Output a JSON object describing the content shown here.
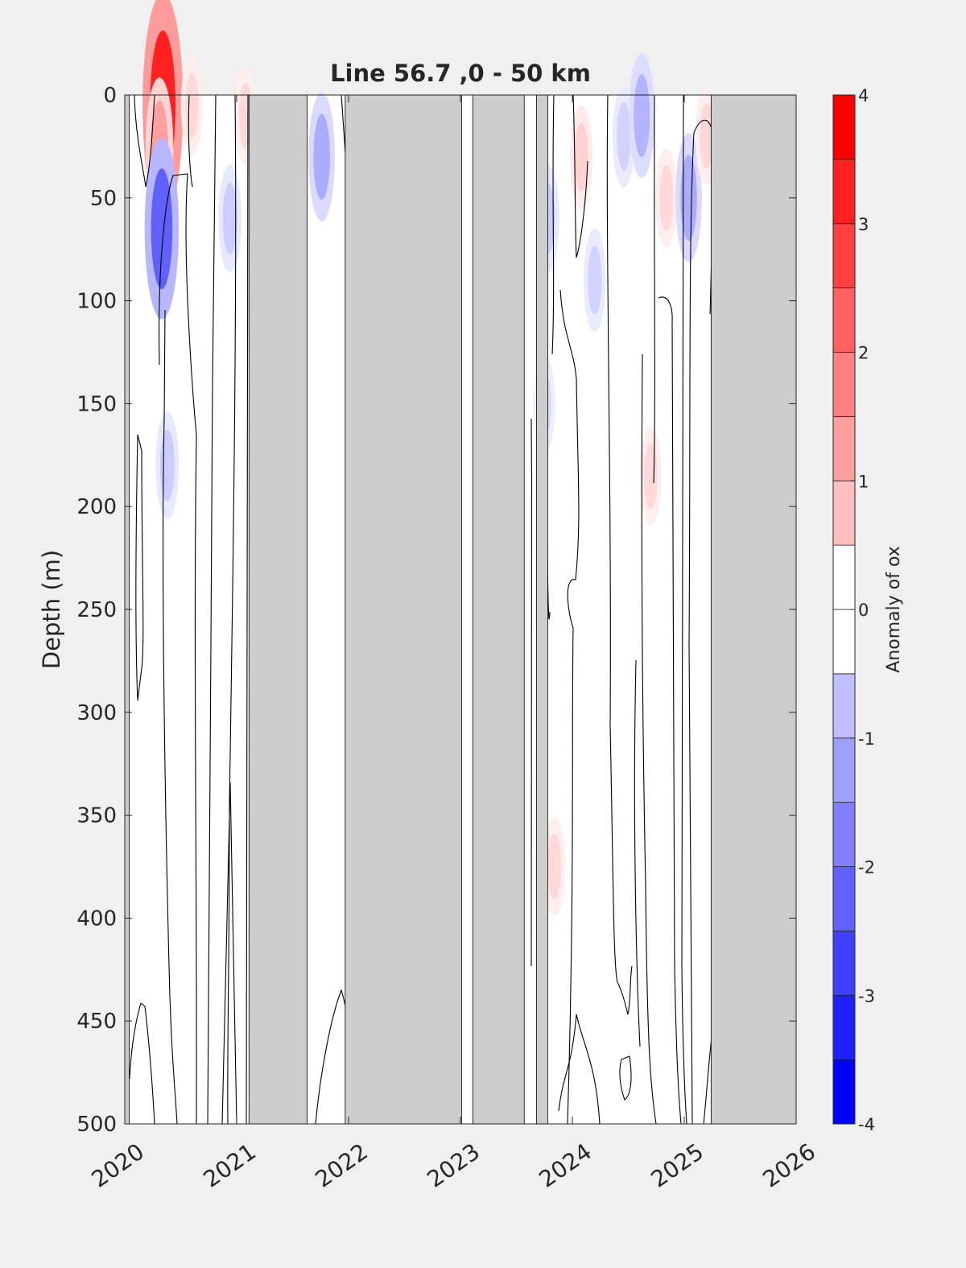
{
  "chart_data": {
    "type": "heatmap",
    "title": "Line 56.7 ,0 - 50 km",
    "ylabel": "Depth (m)",
    "xlabel": "",
    "xlim": [
      2020,
      2026
    ],
    "ylim": [
      500,
      0
    ],
    "y_reversed": true,
    "xticks": [
      "2020",
      "2021",
      "2022",
      "2023",
      "2024",
      "2025",
      "2026"
    ],
    "yticks": [
      "0",
      "50",
      "100",
      "150",
      "200",
      "250",
      "300",
      "350",
      "400",
      "450",
      "500"
    ],
    "colorbar": {
      "label": "Anomaly of ox",
      "range": [
        -4,
        4
      ],
      "step": 0.5,
      "ticks": [
        "-4",
        "-3",
        "-2",
        "-1",
        "0",
        "1",
        "2",
        "3",
        "4"
      ]
    },
    "colors": {
      "no_data": "#cccccc",
      "positive": "#ff0000",
      "negative": "#0000ff",
      "neutral": "#ffffff"
    },
    "no_data_periods": [
      [
        2020.0,
        2020.04
      ],
      [
        2021.11,
        2021.63
      ],
      [
        2021.97,
        2023.01
      ],
      [
        2023.11,
        2023.57
      ],
      [
        2023.68,
        2023.78
      ],
      [
        2025.24,
        2026.0
      ]
    ],
    "anomalies": [
      {
        "x": 2020.34,
        "depth": 5,
        "value": 3.5
      },
      {
        "x": 2020.31,
        "depth": 25,
        "value": 1.5
      },
      {
        "x": 2020.33,
        "depth": 65,
        "value": -2.5
      },
      {
        "x": 2020.38,
        "depth": 180,
        "value": -0.8
      },
      {
        "x": 2020.6,
        "depth": 5,
        "value": 0.6
      },
      {
        "x": 2020.94,
        "depth": 60,
        "value": -0.8
      },
      {
        "x": 2021.08,
        "depth": 10,
        "value": 0.6
      },
      {
        "x": 2021.76,
        "depth": 30,
        "value": -1.3
      },
      {
        "x": 2023.78,
        "depth": 60,
        "value": -0.8
      },
      {
        "x": 2023.75,
        "depth": 150,
        "value": -0.6
      },
      {
        "x": 2023.84,
        "depth": 375,
        "value": 0.6
      },
      {
        "x": 2024.08,
        "depth": 30,
        "value": 0.7
      },
      {
        "x": 2024.2,
        "depth": 90,
        "value": -0.7
      },
      {
        "x": 2024.46,
        "depth": 20,
        "value": -0.7
      },
      {
        "x": 2024.62,
        "depth": 10,
        "value": -1.2
      },
      {
        "x": 2024.7,
        "depth": 185,
        "value": 0.6
      },
      {
        "x": 2024.84,
        "depth": 50,
        "value": 0.6
      },
      {
        "x": 2025.04,
        "depth": 50,
        "value": -1.3
      },
      {
        "x": 2025.2,
        "depth": 20,
        "value": 0.6
      }
    ]
  }
}
